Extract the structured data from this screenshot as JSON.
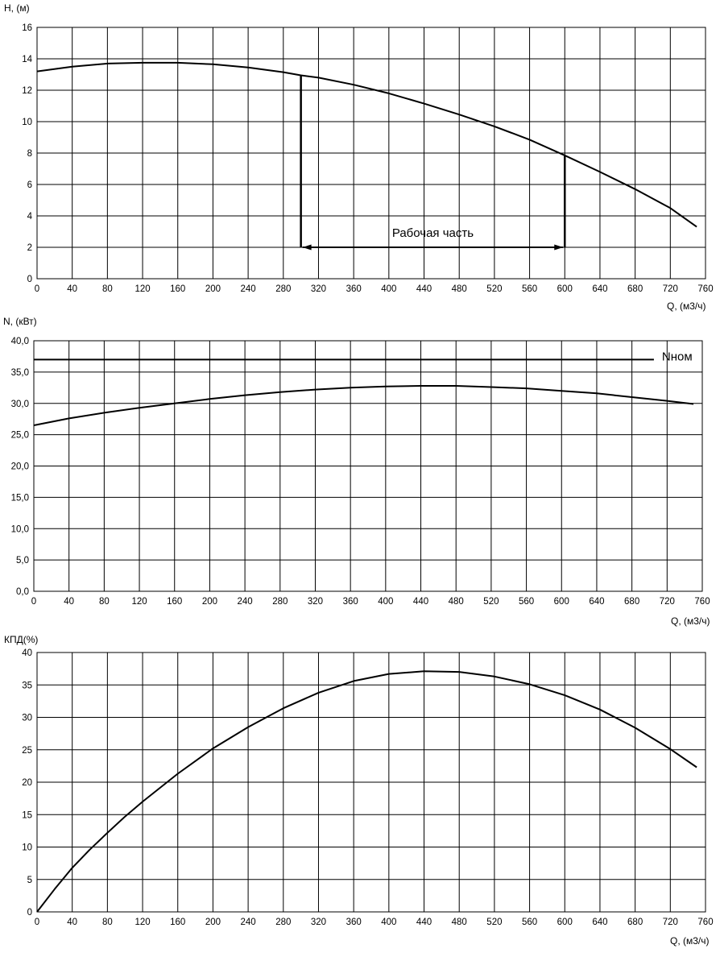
{
  "colors": {
    "line": "#000000",
    "grid": "#000000",
    "background": "#ffffff"
  },
  "chart_data": [
    {
      "type": "line",
      "ylabel": "H, (м)",
      "xlabel": "Q, (м3/ч)",
      "xlim": [
        0,
        760
      ],
      "ylim": [
        0,
        16
      ],
      "xticks": [
        "0",
        "40",
        "80",
        "120",
        "160",
        "200",
        "240",
        "280",
        "320",
        "360",
        "400",
        "440",
        "480",
        "520",
        "560",
        "600",
        "640",
        "680",
        "720",
        "760"
      ],
      "yticks": [
        "0",
        "2",
        "4",
        "6",
        "8",
        "10",
        "12",
        "14",
        "16"
      ],
      "grid": true,
      "series": [
        {
          "x": [
            0,
            40,
            80,
            120,
            160,
            200,
            240,
            280,
            300,
            320,
            360,
            400,
            440,
            480,
            520,
            560,
            600,
            640,
            680,
            720,
            750
          ],
          "values": [
            13.2,
            13.5,
            13.7,
            13.75,
            13.75,
            13.65,
            13.45,
            13.15,
            12.95,
            12.8,
            12.35,
            11.8,
            11.15,
            10.45,
            9.7,
            8.85,
            7.85,
            6.8,
            5.7,
            4.5,
            3.3
          ]
        }
      ],
      "working_range": {
        "label": "Рабочая часть",
        "x_from": 300,
        "x_to": 600,
        "y_level": 2
      }
    },
    {
      "type": "line",
      "ylabel": "N, (кВт)",
      "xlabel": "Q, (м3/ч)",
      "xlim": [
        0,
        760
      ],
      "ylim": [
        0,
        40
      ],
      "xticks": [
        "0",
        "40",
        "80",
        "120",
        "160",
        "200",
        "240",
        "280",
        "320",
        "360",
        "400",
        "440",
        "480",
        "520",
        "560",
        "600",
        "640",
        "680",
        "720",
        "760"
      ],
      "yticks": [
        "0,0",
        "5,0",
        "10,0",
        "15,0",
        "20,0",
        "25,0",
        "30,0",
        "35,0",
        "40,0"
      ],
      "grid": true,
      "series": [
        {
          "x": [
            0,
            40,
            80,
            120,
            160,
            200,
            240,
            280,
            320,
            360,
            400,
            440,
            480,
            520,
            560,
            600,
            640,
            680,
            720,
            750
          ],
          "values": [
            26.5,
            27.6,
            28.5,
            29.3,
            30.0,
            30.7,
            31.3,
            31.8,
            32.2,
            32.5,
            32.7,
            32.8,
            32.8,
            32.6,
            32.4,
            32.0,
            31.6,
            31.0,
            30.4,
            29.9
          ]
        }
      ],
      "reference_line": {
        "label": "Nном",
        "value": 37,
        "x_from": 0,
        "x_to": 705
      }
    },
    {
      "type": "line",
      "ylabel": "КПД(%)",
      "xlabel": "Q, (м3/ч)",
      "xlim": [
        0,
        760
      ],
      "ylim": [
        0,
        40
      ],
      "xticks": [
        "0",
        "40",
        "80",
        "120",
        "160",
        "200",
        "240",
        "280",
        "320",
        "360",
        "400",
        "440",
        "480",
        "520",
        "560",
        "600",
        "640",
        "680",
        "720",
        "760"
      ],
      "yticks": [
        "0",
        "5",
        "10",
        "15",
        "20",
        "25",
        "30",
        "35",
        "40"
      ],
      "grid": true,
      "series": [
        {
          "x": [
            0,
            20,
            40,
            60,
            80,
            100,
            120,
            160,
            200,
            240,
            280,
            320,
            360,
            400,
            440,
            480,
            520,
            560,
            600,
            640,
            680,
            720,
            750
          ],
          "values": [
            0,
            3.5,
            6.8,
            9.6,
            12.2,
            14.7,
            17.0,
            21.3,
            25.2,
            28.5,
            31.4,
            33.8,
            35.6,
            36.7,
            37.1,
            37.0,
            36.3,
            35.1,
            33.4,
            31.2,
            28.4,
            25.1,
            22.3
          ]
        }
      ]
    }
  ]
}
